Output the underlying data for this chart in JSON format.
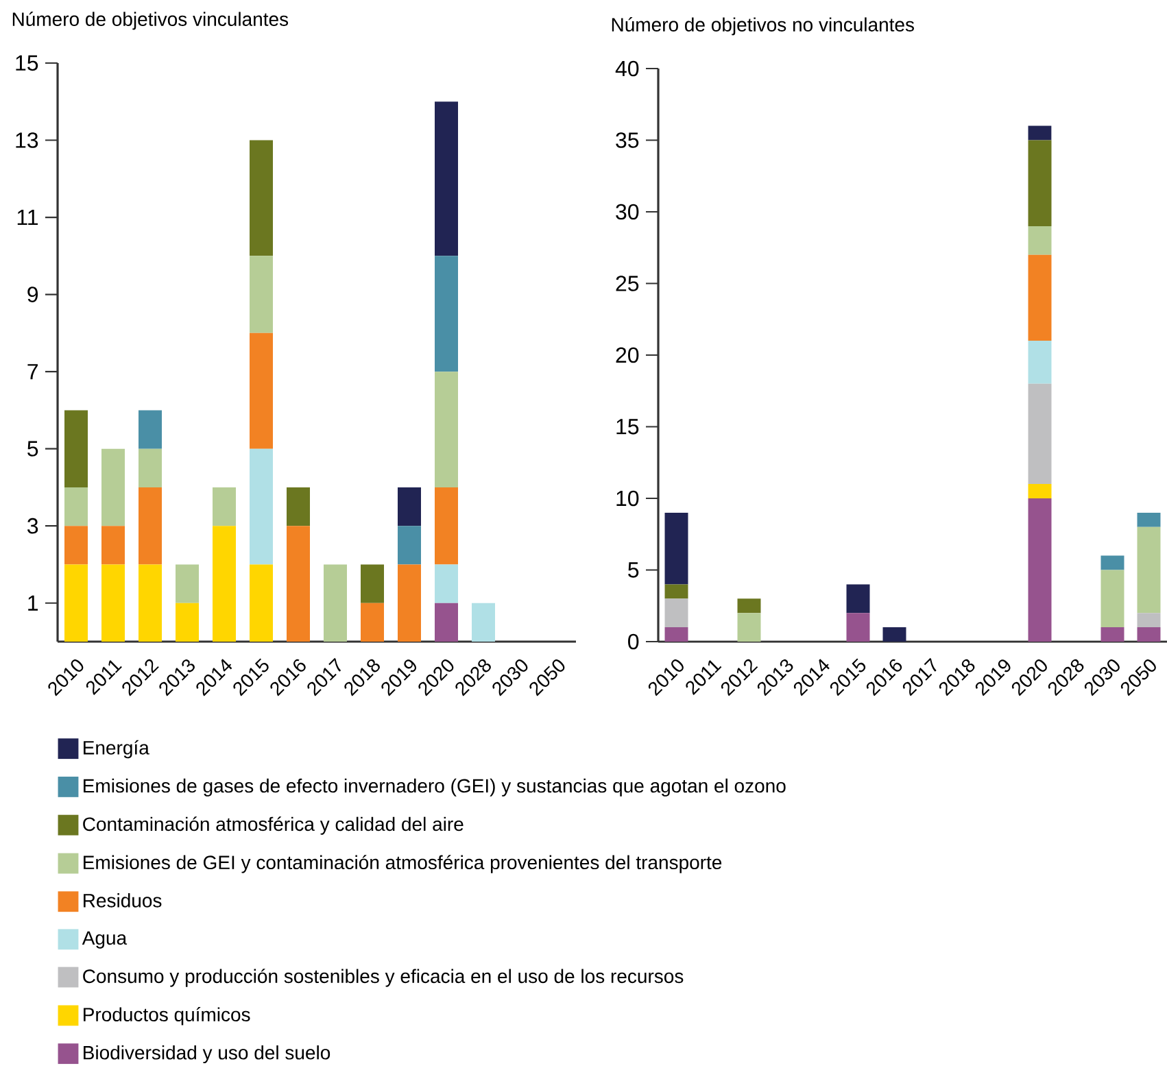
{
  "chart_data": [
    {
      "type": "bar",
      "title": "Número de objetivos vinculantes",
      "stacked": true,
      "legend": "bottom",
      "categories": [
        "2010",
        "2011",
        "2012",
        "2013",
        "2014",
        "2015",
        "2016",
        "2017",
        "2018",
        "2019",
        "2020",
        "2028",
        "2030",
        "2050"
      ],
      "ylim": [
        0,
        15
      ],
      "yticks": [
        1,
        3,
        5,
        7,
        9,
        11,
        13,
        15
      ],
      "series": [
        {
          "name": "Biodiversidad y uso del suelo",
          "color": "#96538e",
          "values": [
            null,
            null,
            null,
            null,
            null,
            null,
            null,
            null,
            null,
            null,
            1,
            null,
            null,
            null
          ]
        },
        {
          "name": "Productos químicos",
          "color": "#ffd600",
          "values": [
            2,
            2,
            2,
            1,
            3,
            2,
            null,
            null,
            null,
            null,
            null,
            null,
            null,
            null
          ]
        },
        {
          "name": "Consumo y producción sostenibles y eficacia en el uso de los recursos",
          "color": "#bfbfc1",
          "values": [
            null,
            null,
            null,
            null,
            null,
            null,
            null,
            null,
            null,
            null,
            null,
            null,
            null,
            null
          ]
        },
        {
          "name": "Agua",
          "color": "#b0e0e6",
          "values": [
            null,
            null,
            null,
            null,
            null,
            3,
            null,
            null,
            null,
            null,
            1,
            1,
            null,
            null
          ]
        },
        {
          "name": "Residuos",
          "color": "#f28223",
          "values": [
            1,
            1,
            2,
            null,
            null,
            3,
            3,
            null,
            1,
            2,
            2,
            null,
            null,
            null
          ]
        },
        {
          "name": "Emisiones de GEI y contaminación atmosférica provenientes del transporte",
          "color": "#b6cd96",
          "values": [
            1,
            2,
            1,
            1,
            1,
            2,
            null,
            2,
            null,
            null,
            3,
            null,
            null,
            null
          ]
        },
        {
          "name": "Contaminación atmosférica y calidad del aire",
          "color": "#6b7720",
          "values": [
            2,
            null,
            null,
            null,
            null,
            3,
            1,
            null,
            1,
            null,
            null,
            null,
            null,
            null
          ]
        },
        {
          "name": "Emisiones de gases de efecto invernadero (GEI) y sustancias que agotan el ozono",
          "color": "#4a8fa6",
          "values": [
            null,
            null,
            1,
            null,
            null,
            null,
            null,
            null,
            null,
            1,
            3,
            null,
            null,
            null
          ]
        },
        {
          "name": "Energía",
          "color": "#212453",
          "values": [
            null,
            null,
            null,
            null,
            null,
            null,
            null,
            null,
            null,
            1,
            4,
            null,
            null,
            null
          ]
        }
      ]
    },
    {
      "type": "bar",
      "title": "Número de objetivos no vinculantes",
      "stacked": true,
      "categories": [
        "2010",
        "2011",
        "2012",
        "2013",
        "2014",
        "2015",
        "2016",
        "2017",
        "2018",
        "2019",
        "2020",
        "2028",
        "2030",
        "2050"
      ],
      "ylim": [
        0,
        40
      ],
      "yticks": [
        0,
        5,
        10,
        15,
        20,
        25,
        30,
        35,
        40
      ],
      "series": [
        {
          "color": "#96538e",
          "values": [
            1,
            null,
            null,
            null,
            null,
            2,
            null,
            null,
            null,
            null,
            10,
            null,
            1,
            1
          ]
        },
        {
          "color": "#ffd600",
          "values": [
            null,
            null,
            null,
            null,
            null,
            null,
            null,
            null,
            null,
            null,
            1,
            null,
            null,
            null
          ]
        },
        {
          "color": "#bfbfc1",
          "values": [
            2,
            null,
            null,
            null,
            null,
            null,
            null,
            null,
            null,
            null,
            7,
            null,
            null,
            1
          ]
        },
        {
          "color": "#b0e0e6",
          "values": [
            null,
            null,
            null,
            null,
            null,
            null,
            null,
            null,
            null,
            null,
            3,
            null,
            null,
            null
          ]
        },
        {
          "color": "#f28223",
          "values": [
            null,
            null,
            null,
            null,
            null,
            null,
            null,
            null,
            null,
            null,
            6,
            null,
            null,
            null
          ]
        },
        {
          "color": "#b6cd96",
          "values": [
            null,
            null,
            2,
            null,
            null,
            null,
            null,
            null,
            null,
            null,
            2,
            null,
            4,
            6
          ]
        },
        {
          "color": "#6b7720",
          "values": [
            1,
            null,
            1,
            null,
            null,
            null,
            null,
            null,
            null,
            null,
            6,
            null,
            null,
            null
          ]
        },
        {
          "color": "#4a8fa6",
          "values": [
            null,
            null,
            null,
            null,
            null,
            null,
            null,
            null,
            null,
            null,
            null,
            null,
            1,
            1
          ]
        },
        {
          "color": "#212453",
          "values": [
            5,
            null,
            null,
            null,
            null,
            2,
            1,
            null,
            null,
            null,
            1,
            null,
            null,
            null
          ]
        }
      ]
    }
  ]
}
